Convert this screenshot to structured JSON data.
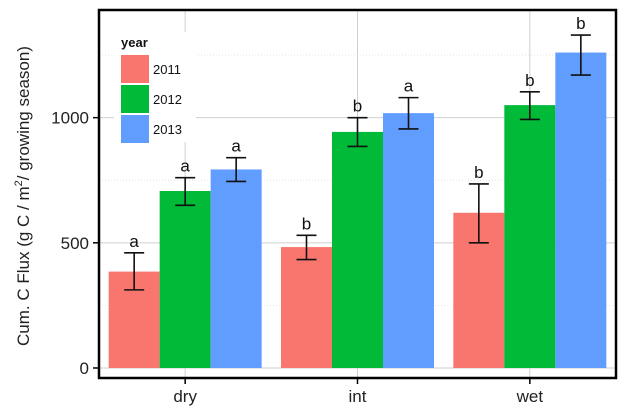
{
  "chart_data": {
    "type": "bar",
    "title": "",
    "xlabel": "",
    "ylabel": "Cum. C Flux (g C / m² / growing season)",
    "ylabel_parts": {
      "before": "Cum. C Flux (g C / m",
      "superscript": "2",
      "after": "/ growing season)"
    },
    "categories": [
      "dry",
      "int",
      "wet"
    ],
    "ylim": [
      -40,
      1430
    ],
    "yticks": [
      0,
      500,
      1000
    ],
    "ytick_labels": [
      "0",
      "500",
      "1000"
    ],
    "minor_gridlines": [
      250,
      750,
      1250
    ],
    "grid": true,
    "legend": {
      "title": "year",
      "placement": "top-left"
    },
    "series": [
      {
        "name": "2011",
        "color": "#F8766D",
        "values": [
          385,
          483,
          620
        ],
        "err_low": [
          312,
          433,
          500
        ],
        "err_high": [
          460,
          530,
          735
        ],
        "letters": [
          "a",
          "b",
          "b"
        ]
      },
      {
        "name": "2012",
        "color": "#00BA38",
        "values": [
          707,
          943,
          1050
        ],
        "err_low": [
          650,
          885,
          993
        ],
        "err_high": [
          760,
          1000,
          1103
        ],
        "letters": [
          "a",
          "b",
          "b"
        ]
      },
      {
        "name": "2013",
        "color": "#619CFF",
        "values": [
          793,
          1018,
          1260
        ],
        "err_low": [
          745,
          955,
          1170
        ],
        "err_high": [
          840,
          1080,
          1330
        ],
        "letters": [
          "a",
          "a",
          "b"
        ]
      }
    ]
  }
}
